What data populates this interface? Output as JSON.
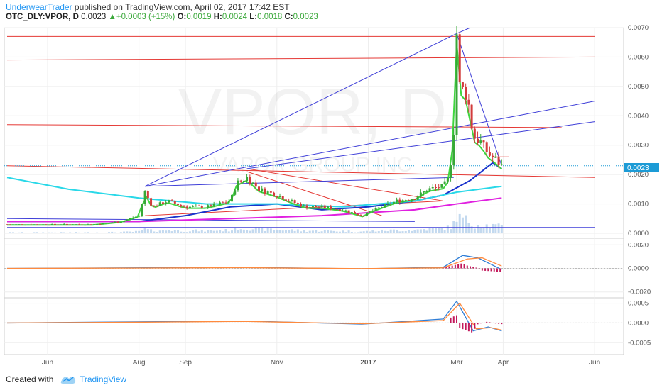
{
  "header": {
    "author": "UnderwearTrader",
    "published": " published on TradingView.com, April 02, 2017 17:42 EST",
    "symbol": "OTC_DLY:VPOR, D",
    "price": "0.0023",
    "change_arrow": "▲",
    "change": "+0.0003 (+15%)",
    "o_label": "O:",
    "o": "0.0019",
    "h_label": "H:",
    "h": "0.0024",
    "l_label": "L:",
    "l": "0.0018",
    "c_label": "C:",
    "c": "0.0023"
  },
  "footer": {
    "created_with": "Created with",
    "brand": "TradingView"
  },
  "watermark": {
    "ticker": "VPOR, D",
    "company": "VAPOR GROUP INC"
  },
  "colors": {
    "candle_up": "#37a837",
    "candle_down": "#d23c3c",
    "trend_red": "#e53935",
    "trend_blue": "#3f3fd8",
    "ma_green": "#3fd63f",
    "ma_blue": "#1a33cc",
    "ma_cyan": "#29d8e8",
    "ma_magenta": "#e020e0",
    "volume": "#a9c9e8",
    "macd": "#2e7dd6",
    "signal": "#ff8a3d",
    "histogram": "#c2185b"
  },
  "chart_data": [
    {
      "type": "line",
      "panel": "price",
      "ylim": [
        0,
        0.007
      ],
      "y_ticks": [
        "0.0000",
        "0.0010",
        "0.0020",
        "0.0030",
        "0.0040",
        "0.0050",
        "0.0060",
        "0.0070"
      ],
      "x_ticks": [
        "Jun",
        "Aug",
        "Sep",
        "Nov",
        "2017",
        "Mar",
        "Apr",
        "Jun"
      ],
      "last_price_label": "0.0023",
      "series": [
        {
          "values": [
            [
              "2016-05-05",
              0.0003
            ],
            [
              "2016-06-01",
              0.0003
            ],
            [
              "2016-07-01",
              0.0003
            ],
            [
              "2016-07-20",
              0.0004
            ],
            [
              "2016-08-01",
              0.0006
            ],
            [
              "2016-08-05",
              0.0014
            ],
            [
              "2016-08-10",
              0.0009
            ],
            [
              "2016-08-20",
              0.0011
            ],
            [
              "2016-09-01",
              0.0009
            ],
            [
              "2016-09-15",
              0.0009
            ],
            [
              "2016-10-01",
              0.0011
            ],
            [
              "2016-10-05",
              0.0017
            ],
            [
              "2016-10-12",
              0.0019
            ],
            [
              "2016-10-20",
              0.0015
            ],
            [
              "2016-11-01",
              0.0013
            ],
            [
              "2016-11-10",
              0.0011
            ],
            [
              "2016-11-20",
              0.0009
            ],
            [
              "2016-12-01",
              0.0009
            ],
            [
              "2016-12-15",
              0.0008
            ],
            [
              "2016-12-28",
              0.0006
            ],
            [
              "2017-01-05",
              0.0008
            ],
            [
              "2017-01-20",
              0.0011
            ],
            [
              "2017-02-01",
              0.0012
            ],
            [
              "2017-02-10",
              0.0015
            ],
            [
              "2017-02-20",
              0.0016
            ],
            [
              "2017-02-24",
              0.0019
            ],
            [
              "2017-02-27",
              0.0035
            ],
            [
              "2017-03-01",
              0.0068
            ],
            [
              "2017-03-03",
              0.005
            ],
            [
              "2017-03-08",
              0.0047
            ],
            [
              "2017-03-12",
              0.0033
            ],
            [
              "2017-03-17",
              0.0031
            ],
            [
              "2017-03-22",
              0.0027
            ],
            [
              "2017-03-27",
              0.0025
            ],
            [
              "2017-03-31",
              0.0023
            ]
          ]
        },
        {
          "values": [
            [
              "2016-05-05",
              0.0004
            ],
            [
              "2016-08-01",
              0.0004
            ],
            [
              "2016-09-01",
              0.0006
            ],
            [
              "2016-10-01",
              0.0009
            ],
            [
              "2016-11-01",
              0.001
            ],
            [
              "2016-12-01",
              0.0008
            ],
            [
              "2017-01-01",
              0.0009
            ],
            [
              "2017-02-01",
              0.0011
            ],
            [
              "2017-02-20",
              0.0013
            ],
            [
              "2017-03-10",
              0.0018
            ],
            [
              "2017-03-25",
              0.0024
            ],
            [
              "2017-03-31",
              0.0022
            ]
          ]
        },
        {
          "values": [
            [
              "2016-05-05",
              0.0019
            ],
            [
              "2016-06-15",
              0.0015
            ],
            [
              "2016-08-01",
              0.0012
            ],
            [
              "2016-09-15",
              0.001
            ],
            [
              "2016-11-01",
              0.001
            ],
            [
              "2016-12-15",
              0.0009
            ],
            [
              "2017-02-01",
              0.0011
            ],
            [
              "2017-03-01",
              0.0014
            ],
            [
              "2017-03-31",
              0.0016
            ]
          ]
        },
        {
          "values": [
            [
              "2016-05-05",
              0.0004
            ],
            [
              "2016-08-01",
              0.0004
            ],
            [
              "2016-10-01",
              0.0005
            ],
            [
              "2016-12-01",
              0.0006
            ],
            [
              "2017-02-01",
              0.0008
            ],
            [
              "2017-03-01",
              0.001
            ],
            [
              "2017-03-31",
              0.0012
            ]
          ]
        }
      ]
    },
    {
      "type": "line",
      "panel": "macd",
      "ylim": [
        -0.0025,
        0.0025
      ],
      "y_ticks": [
        "0.0020",
        "0.0000",
        "-0.0020"
      ],
      "series": [
        {
          "values": [
            [
              "2016-05-05",
              0
            ],
            [
              "2016-08-05",
              5e-05
            ],
            [
              "2016-10-10",
              8e-05
            ],
            [
              "2016-12-28",
              -3e-05
            ],
            [
              "2017-02-20",
              0.0001
            ],
            [
              "2017-03-05",
              0.0011
            ],
            [
              "2017-03-15",
              0.0009
            ],
            [
              "2017-03-31",
              -0.0001
            ]
          ]
        },
        {
          "values": [
            [
              "2016-05-05",
              0
            ],
            [
              "2016-08-05",
              3e-05
            ],
            [
              "2016-10-10",
              6e-05
            ],
            [
              "2016-12-28",
              -2e-05
            ],
            [
              "2017-02-20",
              5e-05
            ],
            [
              "2017-03-08",
              0.0008
            ],
            [
              "2017-03-18",
              0.0009
            ],
            [
              "2017-03-31",
              0.0002
            ]
          ]
        }
      ]
    },
    {
      "type": "line",
      "panel": "oscillator",
      "ylim": [
        -0.0008,
        0.0006
      ],
      "y_ticks": [
        "0.0005",
        "0.0000",
        "-0.0005"
      ],
      "series": [
        {
          "values": [
            [
              "2016-05-05",
              0
            ],
            [
              "2016-08-05",
              3e-05
            ],
            [
              "2016-10-10",
              5e-05
            ],
            [
              "2016-12-28",
              -3e-05
            ],
            [
              "2017-02-20",
              0.0001
            ],
            [
              "2017-03-01",
              0.00055
            ],
            [
              "2017-03-12",
              -0.0002
            ],
            [
              "2017-03-22",
              -0.0001
            ],
            [
              "2017-03-31",
              -0.0002
            ]
          ]
        },
        {
          "values": [
            [
              "2016-05-05",
              0
            ],
            [
              "2016-08-05",
              2e-05
            ],
            [
              "2016-10-10",
              4e-05
            ],
            [
              "2016-12-28",
              -2e-05
            ],
            [
              "2017-02-20",
              6e-05
            ],
            [
              "2017-03-03",
              0.0005
            ],
            [
              "2017-03-14",
              -0.00015
            ],
            [
              "2017-03-24",
              -0.00012
            ],
            [
              "2017-03-31",
              -0.00018
            ]
          ]
        }
      ]
    }
  ]
}
